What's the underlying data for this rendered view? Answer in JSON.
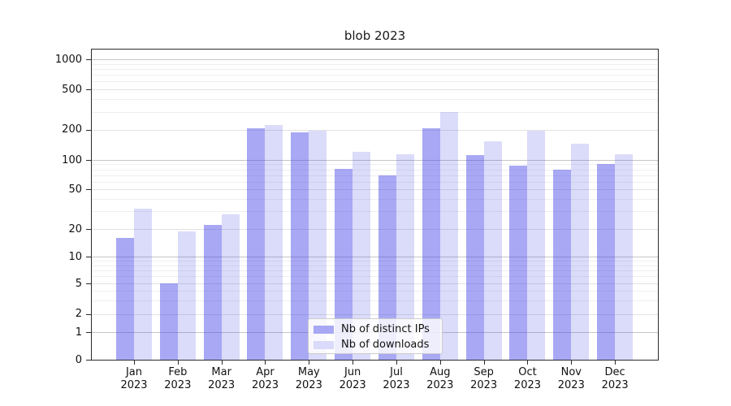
{
  "figure_title": "blob 2023",
  "chart_data": {
    "type": "bar",
    "title": "blob 2023",
    "categories": [
      "Jan 2023",
      "Feb 2023",
      "Mar 2023",
      "Apr 2023",
      "May 2023",
      "Jun 2023",
      "Jul 2023",
      "Aug 2023",
      "Sep 2023",
      "Oct 2023",
      "Nov 2023",
      "Dec 2023"
    ],
    "series": [
      {
        "name": "Nb of distinct IPs",
        "values": [
          16,
          5,
          22,
          205,
          188,
          81,
          70,
          205,
          112,
          88,
          79,
          91
        ],
        "fill": "rgba(62,62,230,0.45)",
        "solid": "#a8a8f4"
      },
      {
        "name": "Nb of downloads",
        "values": [
          32,
          19,
          28,
          220,
          194,
          120,
          113,
          300,
          153,
          195,
          145,
          114
        ],
        "fill": "rgba(62,62,230,0.19)",
        "solid": "#dadafa"
      }
    ],
    "yticks": [
      0,
      1,
      2,
      5,
      10,
      20,
      50,
      100,
      200,
      500,
      1000
    ],
    "ytick_labels": [
      "0",
      "1",
      "2",
      "5",
      "10",
      "20",
      "50",
      "100",
      "200",
      "500",
      "1000"
    ],
    "ylim": [
      0,
      1276
    ],
    "yscale": "log-like with 1-2-5 ticks and linear zero segment",
    "xlabel": "",
    "ylabel": "",
    "grid": true,
    "legend_position": "lower center"
  },
  "colors": {
    "bar_distinct_ips": "#a8a8f4",
    "bar_downloads": "#dadafa",
    "grid_decade": "#c6c6c6",
    "grid_major": "#e2e2e2",
    "grid_minor": "#efefef",
    "axis": "#2b2b2b",
    "legend_border": "#cccccc"
  }
}
